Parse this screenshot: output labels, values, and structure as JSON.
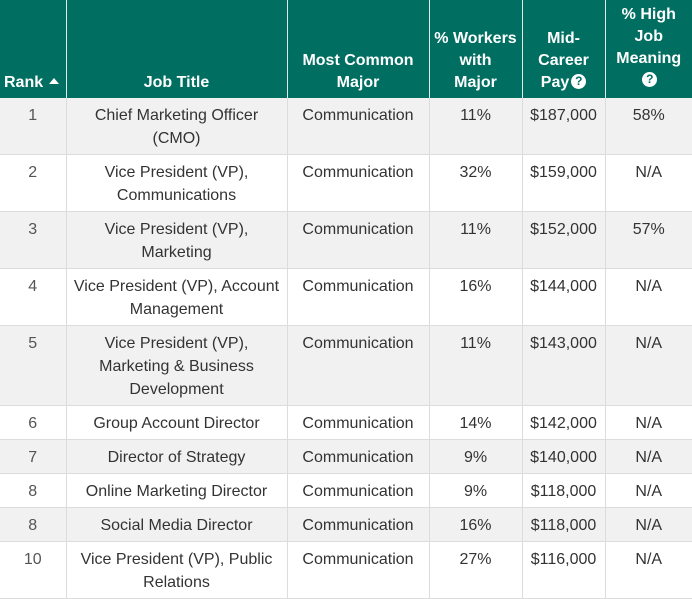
{
  "table": {
    "headers": {
      "rank": "Rank",
      "job_title": "Job Title",
      "major": [
        "Most Common",
        "Major"
      ],
      "workers": [
        "% Workers",
        "with",
        "Major"
      ],
      "pay": [
        "Mid-",
        "Career",
        "Pay"
      ],
      "meaning": [
        "% High",
        "Job",
        "Meaning"
      ]
    },
    "help_glyph": "?",
    "rows": [
      {
        "rank": "1",
        "title": "Chief Marketing Officer (CMO)",
        "major": "Communication",
        "workers": "11%",
        "pay": "$187,000",
        "meaning": "58%"
      },
      {
        "rank": "2",
        "title": "Vice President (VP), Communications",
        "major": "Communication",
        "workers": "32%",
        "pay": "$159,000",
        "meaning": "N/A"
      },
      {
        "rank": "3",
        "title": "Vice President (VP), Marketing",
        "major": "Communication",
        "workers": "11%",
        "pay": "$152,000",
        "meaning": "57%"
      },
      {
        "rank": "4",
        "title": "Vice President (VP), Account Management",
        "major": "Communication",
        "workers": "16%",
        "pay": "$144,000",
        "meaning": "N/A"
      },
      {
        "rank": "5",
        "title": "Vice President (VP), Marketing & Business Development",
        "major": "Communication",
        "workers": "11%",
        "pay": "$143,000",
        "meaning": "N/A"
      },
      {
        "rank": "6",
        "title": "Group Account Director",
        "major": "Communication",
        "workers": "14%",
        "pay": "$142,000",
        "meaning": "N/A"
      },
      {
        "rank": "7",
        "title": "Director of Strategy",
        "major": "Communication",
        "workers": "9%",
        "pay": "$140,000",
        "meaning": "N/A"
      },
      {
        "rank": "8",
        "title": "Online Marketing Director",
        "major": "Communication",
        "workers": "9%",
        "pay": "$118,000",
        "meaning": "N/A"
      },
      {
        "rank": "8",
        "title": "Social Media Director",
        "major": "Communication",
        "workers": "16%",
        "pay": "$118,000",
        "meaning": "N/A"
      },
      {
        "rank": "10",
        "title": "Vice President (VP), Public Relations",
        "major": "Communication",
        "workers": "27%",
        "pay": "$116,000",
        "meaning": "N/A"
      }
    ]
  }
}
